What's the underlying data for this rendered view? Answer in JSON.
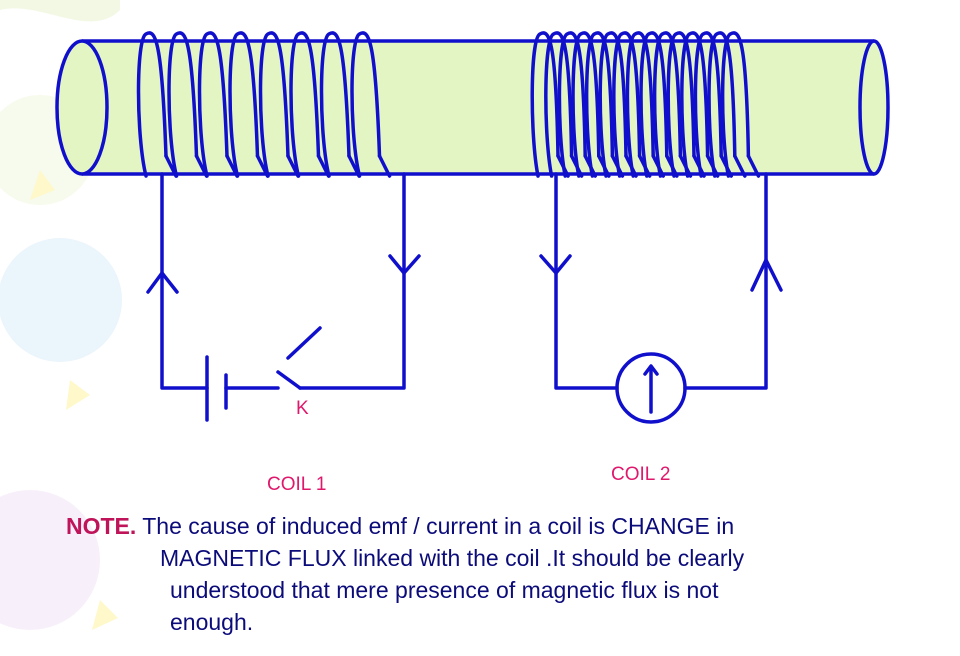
{
  "labels": {
    "switch": "K",
    "coil1": "COIL 1",
    "coil2": "COIL 2"
  },
  "note": {
    "prefix": "NOTE.",
    "line1": " The cause of induced emf / current in a coil is CHANGE in",
    "line2": "MAGNETIC FLUX linked with the coil .It should be clearly",
    "line3": "understood that mere presence of magnetic flux is not",
    "line4": "enough."
  },
  "colors": {
    "wire": "#1010cc",
    "cylinder_fill": "#e4f5c4",
    "label": "#e0186c",
    "note_prefix": "#c0145a",
    "note_text": "#0b0b7a"
  }
}
